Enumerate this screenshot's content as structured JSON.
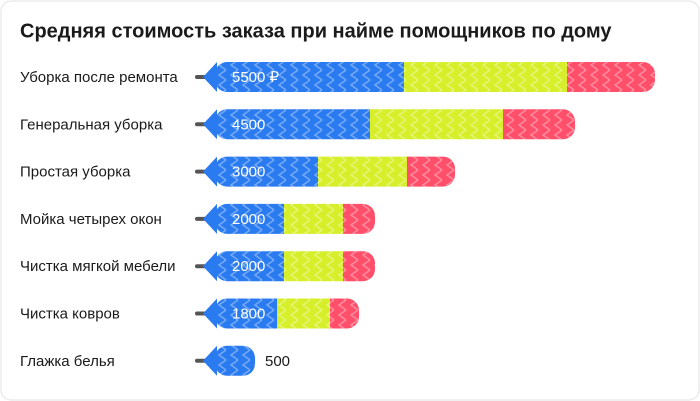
{
  "chart_data": {
    "type": "bar",
    "title": "Средняя стоимость заказа при найме помощников по дому",
    "categories": [
      "Уборка после ремонта",
      "Генеральная уборка",
      "Простая уборка",
      "Мойка четырех окон",
      "Чистка мягкой мебели",
      "Чистка ковров",
      "Глажка белья"
    ],
    "values": [
      5500,
      4500,
      3000,
      2000,
      2000,
      1800,
      500
    ],
    "value_labels": [
      "5500 ₽",
      "4500",
      "3000",
      "2000",
      "2000",
      "1800",
      "500"
    ],
    "colors": [
      "#2b7bf0",
      "#d6ef2a",
      "#ff4f6a"
    ]
  }
}
